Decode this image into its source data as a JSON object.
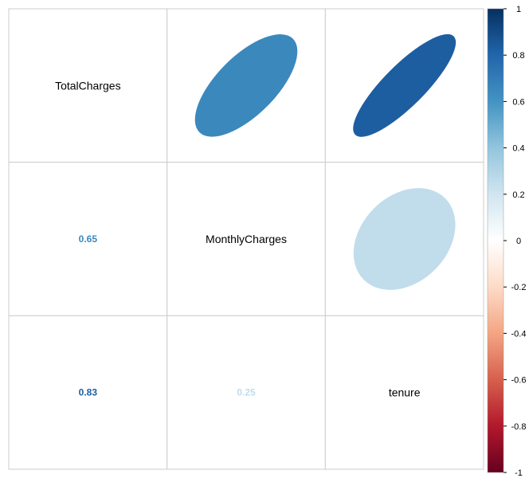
{
  "chart_data": {
    "type": "heatmap",
    "variables": [
      "TotalCharges",
      "MonthlyCharges",
      "tenure"
    ],
    "correlations": [
      {
        "row": "TotalCharges",
        "col": "MonthlyCharges",
        "value": 0.65
      },
      {
        "row": "TotalCharges",
        "col": "tenure",
        "value": 0.83
      },
      {
        "row": "MonthlyCharges",
        "col": "tenure",
        "value": 0.25
      }
    ],
    "upper_method": "ellipse",
    "lower_method": "number",
    "diagonal": "variable-names",
    "colorbar": {
      "ticks": [
        "1",
        "0.8",
        "0.6",
        "0.4",
        "0.2",
        "0",
        "-0.2",
        "-0.4",
        "-0.6",
        "-0.8",
        "-1"
      ],
      "range": [
        -1,
        1
      ],
      "colors": [
        "#67001F",
        "#B2182B",
        "#D6604D",
        "#F4A582",
        "#FDDBC7",
        "#FFFFFF",
        "#D1E5F0",
        "#92C5DE",
        "#4393C3",
        "#2166AC",
        "#053061"
      ]
    }
  }
}
